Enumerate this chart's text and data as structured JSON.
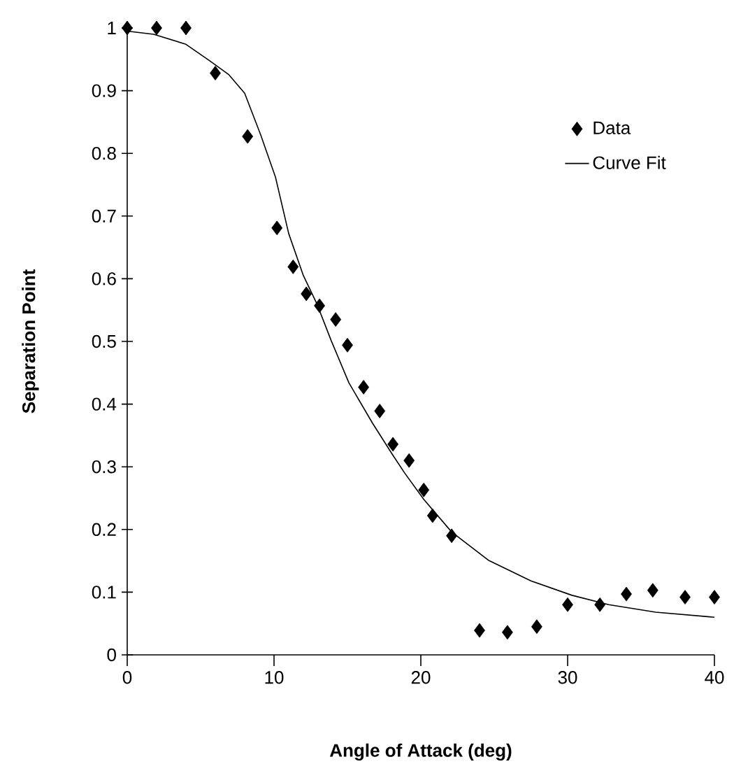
{
  "chart_data": {
    "type": "scatter",
    "xlabel": "Angle of Attack (deg)",
    "ylabel": "Separation Point",
    "xlim": [
      0,
      40
    ],
    "ylim": [
      0,
      1
    ],
    "xticks": [
      0,
      10,
      20,
      30,
      40
    ],
    "yticks": [
      0,
      0.1,
      0.2,
      0.3,
      0.4,
      0.5,
      0.6,
      0.7,
      0.8,
      0.9,
      1
    ],
    "legend": "top right",
    "grid": false,
    "series": [
      {
        "name": "Data",
        "marker": "diamond",
        "color": "#000000",
        "x": [
          0,
          2,
          4,
          6,
          8.2,
          10.2,
          11.3,
          12.2,
          13.1,
          14.2,
          15,
          16.1,
          17.2,
          18.1,
          19.2,
          20.2,
          20.8,
          22.1,
          24,
          25.9,
          27.9,
          30,
          32.2,
          34,
          35.8,
          38,
          40
        ],
        "values": [
          1,
          1,
          1,
          0.928,
          0.827,
          0.681,
          0.619,
          0.576,
          0.557,
          0.535,
          0.494,
          0.427,
          0.389,
          0.336,
          0.31,
          0.263,
          0.222,
          0.19,
          0.039,
          0.036,
          0.045,
          0.08,
          0.08,
          0.097,
          0.103,
          0.092,
          0.092
        ]
      },
      {
        "name": "Curve Fit",
        "type": "line",
        "color": "#000000",
        "x": [
          0,
          1.8,
          4,
          5.6,
          6.9,
          8,
          9.1,
          10.1,
          11,
          12,
          12.9,
          13.9,
          15.1,
          16.7,
          18,
          18.9,
          20.2,
          22.1,
          24.6,
          27.5,
          30.3,
          32.8,
          36,
          40
        ],
        "values": [
          0.995,
          0.99,
          0.974,
          0.948,
          0.926,
          0.896,
          0.829,
          0.762,
          0.672,
          0.605,
          0.561,
          0.501,
          0.434,
          0.37,
          0.322,
          0.29,
          0.248,
          0.196,
          0.151,
          0.118,
          0.095,
          0.08,
          0.068,
          0.06
        ]
      }
    ]
  }
}
